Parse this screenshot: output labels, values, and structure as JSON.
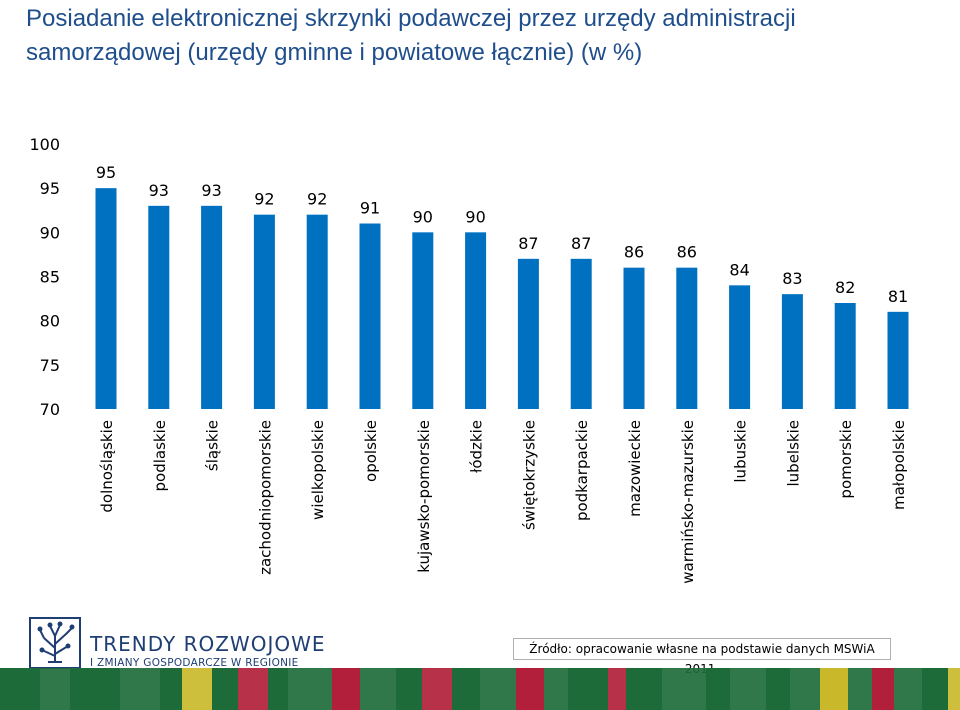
{
  "title_lines": [
    "Posiadanie elektronicznej skrzynki podawczej przez urzędy administracji",
    "samorządowej (urzędy gminne i powiatowe łącznie) (w %)"
  ],
  "chart_data": {
    "type": "bar",
    "title": "Posiadanie elektronicznej skrzynki podawczej przez urzędy administracji samorządowej (urzędy gminne i powiatowe łącznie) (w %)",
    "categories": [
      "dolnośląskie",
      "podlaskie",
      "śląskie",
      "zachodniopomorskie",
      "wielkopolskie",
      "opolskie",
      "kujawsko-pomorskie",
      "łódzkie",
      "świętokrzyskie",
      "podkarpackie",
      "mazowieckie",
      "warmińsko-mazurskie",
      "lubuskie",
      "lubelskie",
      "pomorskie",
      "małopolskie"
    ],
    "values": [
      95,
      93,
      93,
      92,
      92,
      91,
      90,
      90,
      87,
      87,
      86,
      86,
      84,
      83,
      82,
      81
    ],
    "yticks": [
      "70",
      "75",
      "80",
      "85",
      "90",
      "95",
      "100"
    ],
    "ylim": [
      70,
      100
    ],
    "bar_color": "#0070c0",
    "grid": false,
    "legend": "none"
  },
  "logo": {
    "line1": "TRENDY ROZWOJOWE",
    "line2": "I ZMIANY GOSPODARCZE W REGIONIE",
    "icon": "circuit-tree-icon",
    "color": "#1f3e73"
  },
  "source_text": "Źródło: opracowanie własne na podstawie danych MSWiA 2011.",
  "footer_colors": [
    "#1e6b3a",
    "#c9b82a",
    "#b11f3a"
  ]
}
